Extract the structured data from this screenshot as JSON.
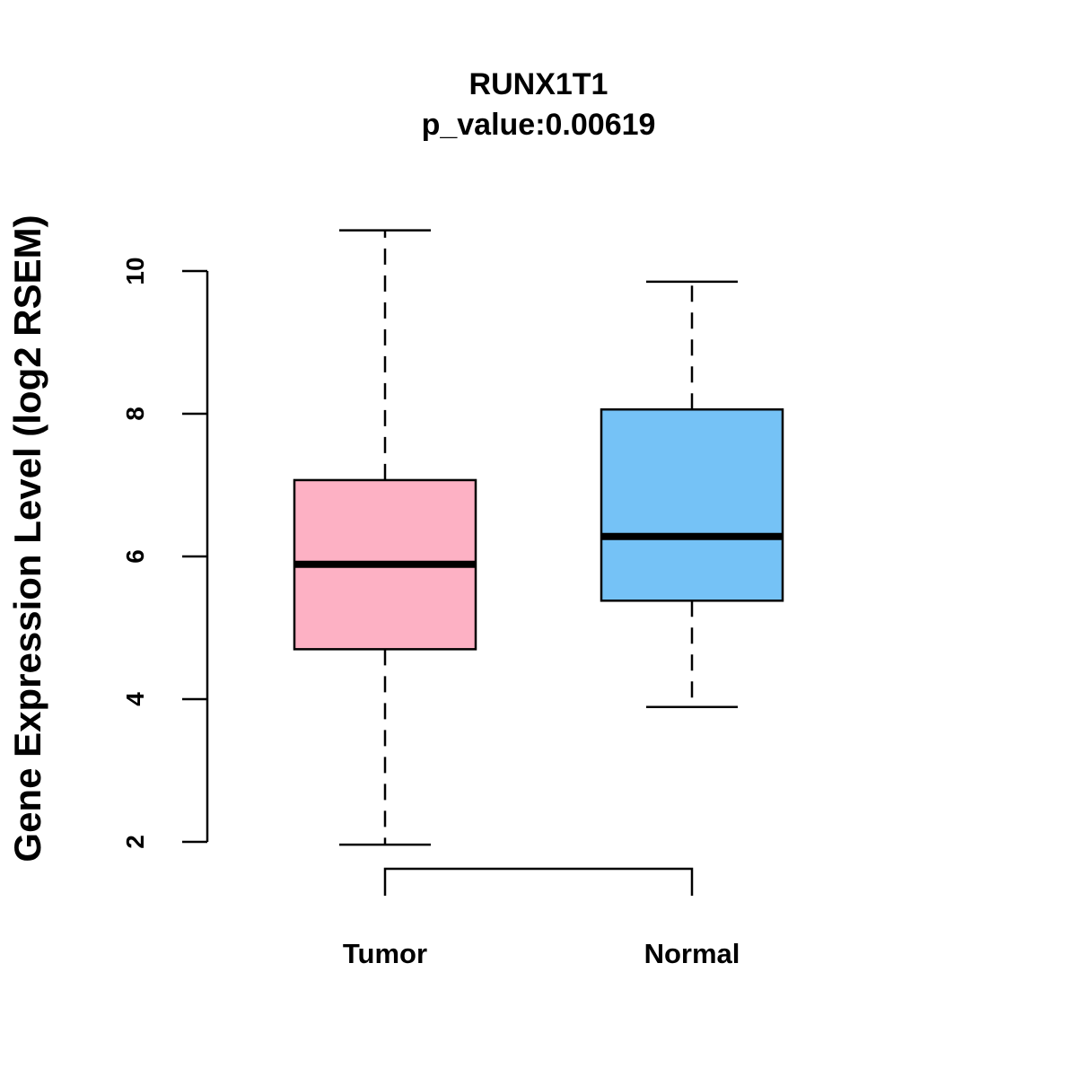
{
  "chart_data": {
    "type": "boxplot",
    "title": "RUNX1T1",
    "subtitle": "p_value:0.00619",
    "xlabel": "",
    "ylabel": "Gene Expression Level (log2 RSEM)",
    "ylim": [
      1.5,
      11
    ],
    "yticks": [
      2,
      4,
      6,
      8,
      10
    ],
    "ytick_labels": [
      "2",
      "4",
      "6",
      "8",
      "10"
    ],
    "categories": [
      "Tumor",
      "Normal"
    ],
    "boxes": [
      {
        "name": "Tumor",
        "whisker_low": 1.96,
        "q1": 4.7,
        "median": 5.89,
        "q3": 7.07,
        "whisker_high": 10.57,
        "color": "#FDB1C4"
      },
      {
        "name": "Normal",
        "whisker_low": 3.89,
        "q1": 5.38,
        "median": 6.28,
        "q3": 8.06,
        "whisker_high": 9.85,
        "color": "#75C2F6"
      }
    ],
    "grid": false,
    "comparison_bracket": [
      "Tumor",
      "Normal"
    ]
  }
}
